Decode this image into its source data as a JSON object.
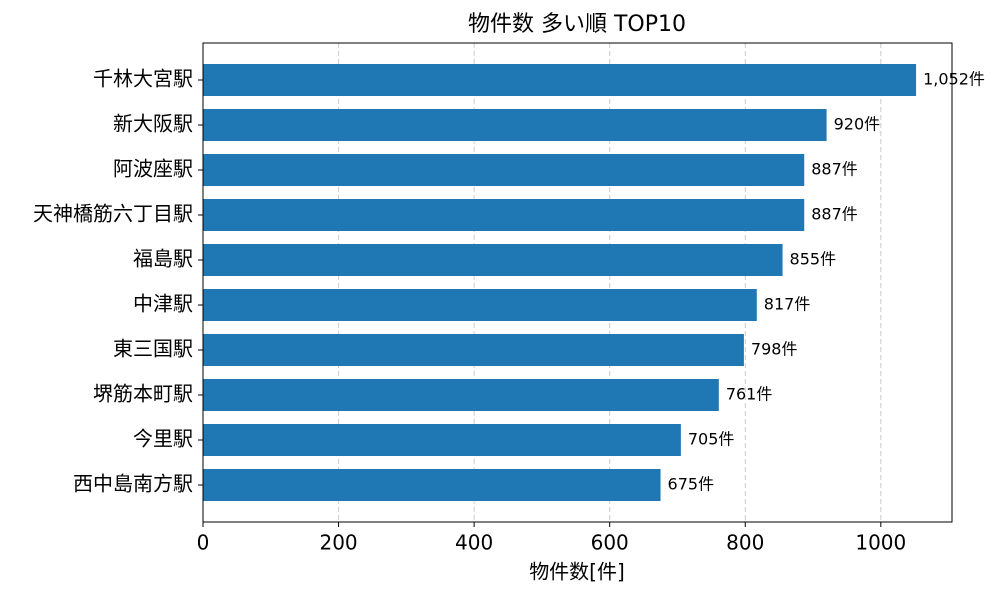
{
  "chart_data": {
    "type": "barh",
    "title": "物件数 多い順 TOP10",
    "xlabel": "物件数[件]",
    "categories": [
      "千林大宮駅",
      "新大阪駅",
      "阿波座駅",
      "天神橋筋六丁目駅",
      "福島駅",
      "中津駅",
      "東三国駅",
      "堺筋本町駅",
      "今里駅",
      "西中島南方駅"
    ],
    "values": [
      1052,
      920,
      887,
      887,
      855,
      817,
      798,
      761,
      705,
      675
    ],
    "value_labels": [
      "1,052件",
      "920件",
      "887件",
      "887件",
      "855件",
      "817件",
      "798件",
      "761件",
      "705件",
      "675件"
    ],
    "color": "#1f77b4",
    "xlim": [
      0,
      1105
    ],
    "xticks": [
      0,
      200,
      400,
      600,
      800,
      1000
    ],
    "grid": true
  }
}
